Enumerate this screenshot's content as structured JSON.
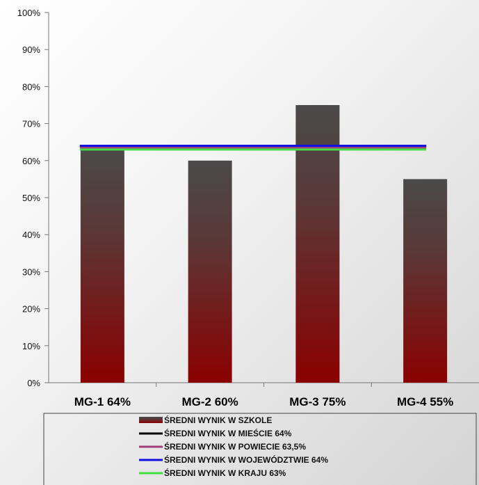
{
  "chart_data": {
    "type": "bar",
    "categories": [
      "MG-1 64%",
      "MG-2 60%",
      "MG-3 75%",
      "MG-4 55%"
    ],
    "series": [
      {
        "name": "ŚREDNI WYNIK W SZKOLE",
        "kind": "bar",
        "values": [
          64,
          60,
          75,
          55
        ]
      },
      {
        "name": "ŚREDNI WYNIK W MIEŚCIE 64%",
        "kind": "line",
        "values": [
          64,
          64,
          64,
          64
        ],
        "color": "#000000"
      },
      {
        "name": "ŚREDNI WYNIK W POWIECIE 63,5%",
        "kind": "line",
        "values": [
          63.5,
          63.5,
          63.5,
          63.5
        ],
        "color": "#a0407a"
      },
      {
        "name": "ŚREDNI WYNIK W WOJEWÓDZTWIE 64%",
        "kind": "line",
        "values": [
          64,
          64,
          64,
          64
        ],
        "color": "#1010e0"
      },
      {
        "name": "ŚREDNI WYNIK W KRAJU 63%",
        "kind": "line",
        "values": [
          63,
          63,
          63,
          63
        ],
        "color": "#40e040"
      }
    ],
    "ylim": [
      0,
      100
    ],
    "yticks": [
      "0%",
      "10%",
      "20%",
      "30%",
      "40%",
      "50%",
      "60%",
      "70%",
      "80%",
      "90%",
      "100%"
    ],
    "bar_gradient": {
      "top": "#4a4a4a",
      "bottom": "#8b0000"
    },
    "legend_position": "bottom",
    "grid": false
  }
}
